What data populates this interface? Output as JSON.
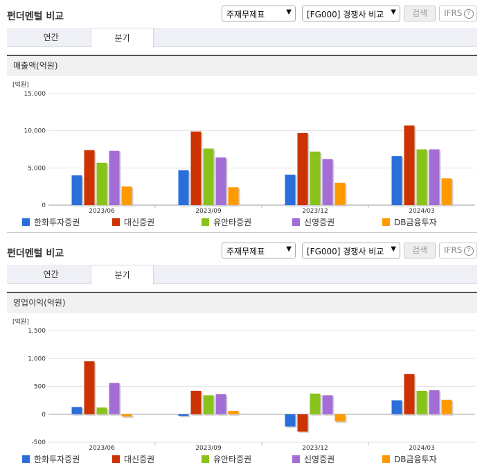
{
  "colors": [
    "#2a6ed9",
    "#cc3300",
    "#88c21a",
    "#a36dd6",
    "#ff9900"
  ],
  "panels": [
    {
      "title": "펀더멘털 비교",
      "select1": "주재무제표",
      "select2": "[FG000] 경쟁사 비교",
      "search_label": "검색",
      "ifrs_label": "IFRS",
      "ifrs_help": "?",
      "tab_annual": "연간",
      "tab_quarter": "분기",
      "section": "매출액(억원)"
    },
    {
      "title": "펀더멘털 비교",
      "select1": "주재무제표",
      "select2": "[FG000] 경쟁사 비교",
      "search_label": "검색",
      "ifrs_label": "IFRS",
      "ifrs_help": "?",
      "tab_annual": "연간",
      "tab_quarter": "분기",
      "section": "영업이익(억원)"
    }
  ],
  "chart_data": [
    {
      "type": "bar",
      "unit_label": "[억원]",
      "categories": [
        "2023/06",
        "2023/09",
        "2023/12",
        "2024/03"
      ],
      "ylim": [
        0,
        15000
      ],
      "yticks": [
        "15,000",
        "10,000",
        "5,000",
        "0"
      ],
      "series": [
        {
          "name": "한화투자증권",
          "values": [
            4000,
            4700,
            4100,
            6600
          ]
        },
        {
          "name": "대신증권",
          "values": [
            7400,
            9900,
            9700,
            10700
          ]
        },
        {
          "name": "유안타증권",
          "values": [
            5700,
            7600,
            7200,
            7500
          ]
        },
        {
          "name": "신영증권",
          "values": [
            7300,
            6400,
            6200,
            7500
          ]
        },
        {
          "name": "DB금융투자",
          "values": [
            2500,
            2400,
            3000,
            3600
          ]
        }
      ]
    },
    {
      "type": "bar",
      "unit_label": "[억원]",
      "categories": [
        "2023/06",
        "2023/09",
        "2023/12",
        "2024/03"
      ],
      "ylim": [
        -500,
        1500
      ],
      "yticks": [
        "1,500",
        "1,000",
        "500",
        "0",
        "-500"
      ],
      "series": [
        {
          "name": "한화투자증권",
          "values": [
            130,
            -30,
            -220,
            250
          ]
        },
        {
          "name": "대신증권",
          "values": [
            950,
            420,
            -310,
            720
          ]
        },
        {
          "name": "유안타증권",
          "values": [
            120,
            340,
            370,
            420
          ]
        },
        {
          "name": "신영증권",
          "values": [
            560,
            360,
            340,
            430
          ]
        },
        {
          "name": "DB금융투자",
          "values": [
            -40,
            60,
            -130,
            260
          ]
        }
      ]
    }
  ]
}
